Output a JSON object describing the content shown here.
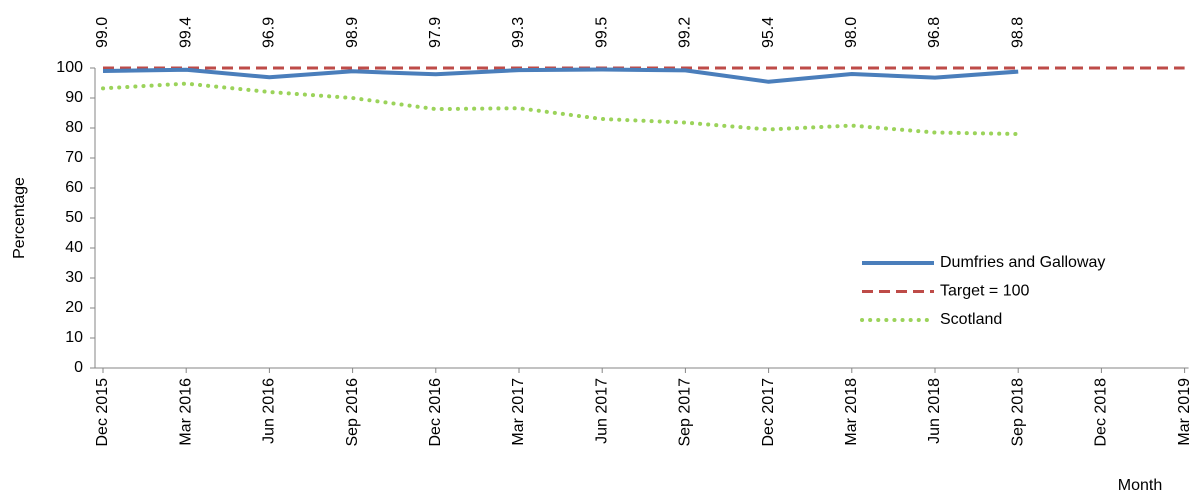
{
  "chart_data": {
    "type": "line",
    "y_label": "Percentage",
    "x_label": "Month",
    "categories": [
      "Dec 2015",
      "Mar 2016",
      "Jun 2016",
      "Sep 2016",
      "Dec 2016",
      "Mar 2017",
      "Jun 2017",
      "Sep 2017",
      "Dec 2017",
      "Mar 2018",
      "Jun 2018",
      "Sep 2018",
      "Dec 2018",
      "Mar 2019"
    ],
    "series": [
      {
        "name": "Dumfries and Galloway",
        "color": "#4a7ebb",
        "style": "solid",
        "values": [
          99.0,
          99.4,
          96.9,
          98.9,
          97.9,
          99.3,
          99.5,
          99.2,
          95.4,
          98.0,
          96.8,
          98.8,
          null,
          null
        ],
        "value_labels": [
          "99.0",
          "99.4",
          "96.9",
          "98.9",
          "97.9",
          "99.3",
          "99.5",
          "99.2",
          "95.4",
          "98.0",
          "96.8",
          "98.8",
          null,
          null
        ]
      },
      {
        "name": "Target = 100",
        "color": "#be4b48",
        "style": "dashed",
        "values": [
          100,
          100,
          100,
          100,
          100,
          100,
          100,
          100,
          100,
          100,
          100,
          100,
          100,
          100
        ]
      },
      {
        "name": "Scotland",
        "color": "#9bd35a",
        "style": "dotted",
        "values": [
          93.2,
          94.8,
          92.0,
          90.0,
          86.3,
          86.6,
          83.0,
          81.8,
          79.5,
          80.8,
          78.5,
          78.0,
          null,
          null
        ]
      }
    ],
    "ylim": [
      0,
      100
    ],
    "yticks": [
      0,
      10,
      20,
      30,
      40,
      50,
      60,
      70,
      80,
      90,
      100
    ],
    "grid": false,
    "legend": "right"
  }
}
